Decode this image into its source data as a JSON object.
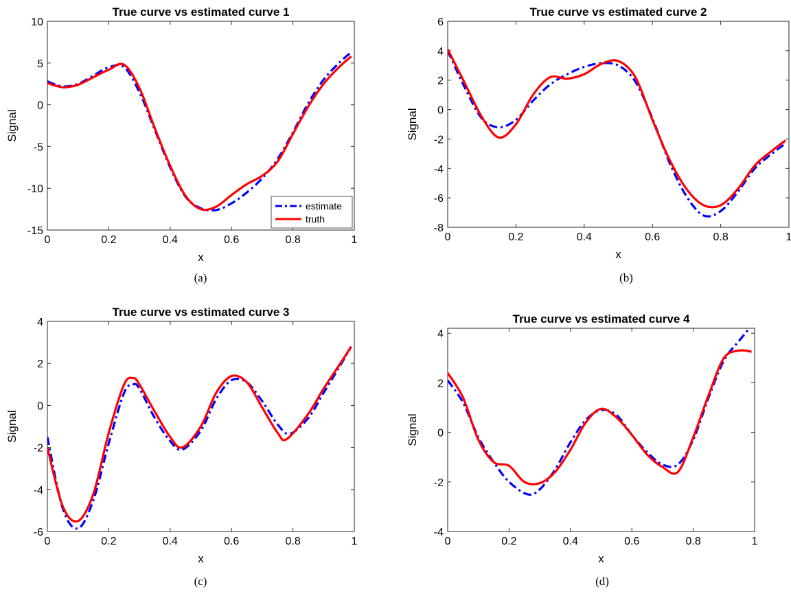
{
  "figure": {
    "panels": [
      "a",
      "b",
      "c",
      "d"
    ]
  },
  "chart_data": [
    {
      "type": "line",
      "caption": "(a)",
      "title": "True curve vs estimated curve 1",
      "xlabel": "x",
      "ylabel": "Signal",
      "xlim": [
        0,
        1
      ],
      "ylim": [
        -15,
        10
      ],
      "xticks": [
        "0",
        "0.2",
        "0.4",
        "0.6",
        "0.8",
        "1"
      ],
      "yticks": [
        "10",
        "5",
        "0",
        "-5",
        "-10",
        "-15"
      ],
      "legend": {
        "show": true,
        "placement": "bottom-right",
        "entries": [
          "estimate",
          "truth"
        ]
      },
      "series": [
        {
          "name": "estimate",
          "style": "dashdot",
          "color": "#0000ff",
          "x": [
            0,
            0.05,
            0.1,
            0.15,
            0.2,
            0.25,
            0.3,
            0.35,
            0.4,
            0.45,
            0.5,
            0.55,
            0.6,
            0.65,
            0.7,
            0.75,
            0.8,
            0.85,
            0.9,
            0.95,
            0.99
          ],
          "y": [
            2.8,
            2.2,
            2.5,
            3.5,
            4.5,
            4.5,
            1.5,
            -3.0,
            -7.5,
            -11.0,
            -12.4,
            -12.6,
            -11.8,
            -10.5,
            -8.8,
            -6.5,
            -3.3,
            0.2,
            3.0,
            5.0,
            6.3
          ]
        },
        {
          "name": "truth",
          "style": "solid",
          "color": "#ff0000",
          "x": [
            0,
            0.05,
            0.1,
            0.15,
            0.2,
            0.25,
            0.3,
            0.35,
            0.4,
            0.45,
            0.5,
            0.55,
            0.6,
            0.65,
            0.7,
            0.75,
            0.8,
            0.85,
            0.9,
            0.95,
            0.99
          ],
          "y": [
            2.6,
            2.1,
            2.4,
            3.3,
            4.2,
            4.8,
            2.0,
            -2.8,
            -7.3,
            -10.9,
            -12.5,
            -12.2,
            -10.8,
            -9.5,
            -8.5,
            -6.8,
            -3.5,
            -0.2,
            2.5,
            4.5,
            5.8
          ]
        }
      ]
    },
    {
      "type": "line",
      "caption": "(b)",
      "title": "True curve vs estimated curve 2",
      "xlabel": "x",
      "ylabel": "Signal",
      "xlim": [
        0,
        1
      ],
      "ylim": [
        -8,
        6
      ],
      "xticks": [
        "0",
        "0.2",
        "0.4",
        "0.6",
        "0.8",
        "1"
      ],
      "yticks": [
        "6",
        "4",
        "2",
        "0",
        "-2",
        "-4",
        "-6",
        "-8"
      ],
      "legend": {
        "show": false
      },
      "series": [
        {
          "name": "estimate",
          "style": "dashdot",
          "color": "#0000ff",
          "x": [
            0,
            0.05,
            0.1,
            0.15,
            0.2,
            0.25,
            0.3,
            0.35,
            0.4,
            0.45,
            0.5,
            0.55,
            0.6,
            0.65,
            0.7,
            0.75,
            0.8,
            0.85,
            0.9,
            0.95,
            0.99
          ],
          "y": [
            4.0,
            1.5,
            -0.6,
            -1.2,
            -0.7,
            0.6,
            1.7,
            2.4,
            2.9,
            3.15,
            3.0,
            1.9,
            -0.6,
            -3.6,
            -5.9,
            -7.2,
            -6.9,
            -5.6,
            -4.0,
            -3.0,
            -2.3
          ]
        },
        {
          "name": "truth",
          "style": "solid",
          "color": "#ff0000",
          "x": [
            0,
            0.05,
            0.1,
            0.15,
            0.2,
            0.25,
            0.3,
            0.35,
            0.4,
            0.45,
            0.5,
            0.55,
            0.6,
            0.65,
            0.7,
            0.75,
            0.8,
            0.85,
            0.9,
            0.95,
            0.99
          ],
          "y": [
            4.1,
            1.8,
            -0.5,
            -1.9,
            -1.0,
            1.0,
            2.2,
            2.1,
            2.4,
            3.1,
            3.3,
            2.2,
            -0.7,
            -3.4,
            -5.4,
            -6.5,
            -6.5,
            -5.4,
            -3.8,
            -2.8,
            -2.1
          ]
        }
      ]
    },
    {
      "type": "line",
      "caption": "(c)",
      "title": "True curve vs estimated curve 3",
      "xlabel": "x",
      "ylabel": "Signal",
      "xlim": [
        0,
        1
      ],
      "ylim": [
        -6,
        4
      ],
      "xticks": [
        "0",
        "0.2",
        "0.4",
        "0.6",
        "0.8",
        "1"
      ],
      "yticks": [
        "4",
        "2",
        "0",
        "-2",
        "-4",
        "-6"
      ],
      "legend": {
        "show": false
      },
      "series": [
        {
          "name": "estimate",
          "style": "dashdot",
          "color": "#0000ff",
          "x": [
            0,
            0.05,
            0.1,
            0.15,
            0.2,
            0.25,
            0.28,
            0.3,
            0.35,
            0.4,
            0.44,
            0.5,
            0.55,
            0.6,
            0.65,
            0.7,
            0.75,
            0.79,
            0.85,
            0.9,
            0.95,
            0.99
          ],
          "y": [
            -1.5,
            -4.9,
            -5.85,
            -4.5,
            -1.8,
            0.6,
            1.0,
            0.8,
            -0.6,
            -1.7,
            -2.1,
            -1.2,
            0.3,
            1.2,
            1.1,
            0.2,
            -0.9,
            -1.35,
            -0.6,
            0.6,
            1.8,
            2.8
          ]
        },
        {
          "name": "truth",
          "style": "solid",
          "color": "#ff0000",
          "x": [
            0,
            0.05,
            0.1,
            0.15,
            0.2,
            0.25,
            0.28,
            0.3,
            0.35,
            0.4,
            0.44,
            0.5,
            0.55,
            0.6,
            0.65,
            0.7,
            0.75,
            0.78,
            0.85,
            0.9,
            0.95,
            0.99
          ],
          "y": [
            -2.0,
            -4.8,
            -5.5,
            -4.2,
            -1.3,
            1.0,
            1.3,
            1.0,
            -0.3,
            -1.5,
            -2.0,
            -1.0,
            0.6,
            1.4,
            1.1,
            -0.1,
            -1.3,
            -1.6,
            -0.4,
            0.8,
            1.9,
            2.8
          ]
        }
      ]
    },
    {
      "type": "line",
      "caption": "(d)",
      "title": "True curve vs estimated curve 4",
      "xlabel": "x",
      "ylabel": "Signal",
      "xlim": [
        0,
        1
      ],
      "ylim": [
        -4,
        4.2
      ],
      "xticks": [
        "0",
        "0.2",
        "0.4",
        "0.6",
        "0.8",
        "1"
      ],
      "yticks": [
        "4",
        "2",
        "0",
        "-2",
        "-4"
      ],
      "legend": {
        "show": false
      },
      "series": [
        {
          "name": "estimate",
          "style": "dashdot",
          "color": "#0000ff",
          "x": [
            0,
            0.05,
            0.1,
            0.15,
            0.2,
            0.26,
            0.3,
            0.35,
            0.4,
            0.45,
            0.5,
            0.55,
            0.6,
            0.65,
            0.7,
            0.75,
            0.8,
            0.85,
            0.9,
            0.95,
            0.99
          ],
          "y": [
            2.1,
            1.2,
            -0.2,
            -1.2,
            -2.0,
            -2.5,
            -2.3,
            -1.5,
            -0.4,
            0.5,
            0.9,
            0.7,
            -0.1,
            -0.8,
            -1.3,
            -1.3,
            -0.3,
            1.4,
            2.9,
            3.7,
            4.3
          ]
        },
        {
          "name": "truth",
          "style": "solid",
          "color": "#ff0000",
          "x": [
            0,
            0.05,
            0.1,
            0.15,
            0.2,
            0.25,
            0.3,
            0.35,
            0.4,
            0.45,
            0.5,
            0.55,
            0.6,
            0.65,
            0.7,
            0.75,
            0.8,
            0.85,
            0.9,
            0.95,
            0.99
          ],
          "y": [
            2.4,
            1.4,
            -0.3,
            -1.2,
            -1.35,
            -2.0,
            -2.05,
            -1.6,
            -0.7,
            0.4,
            0.95,
            0.6,
            -0.1,
            -0.9,
            -1.4,
            -1.6,
            -0.2,
            1.5,
            3.0,
            3.3,
            3.25
          ]
        }
      ]
    }
  ]
}
